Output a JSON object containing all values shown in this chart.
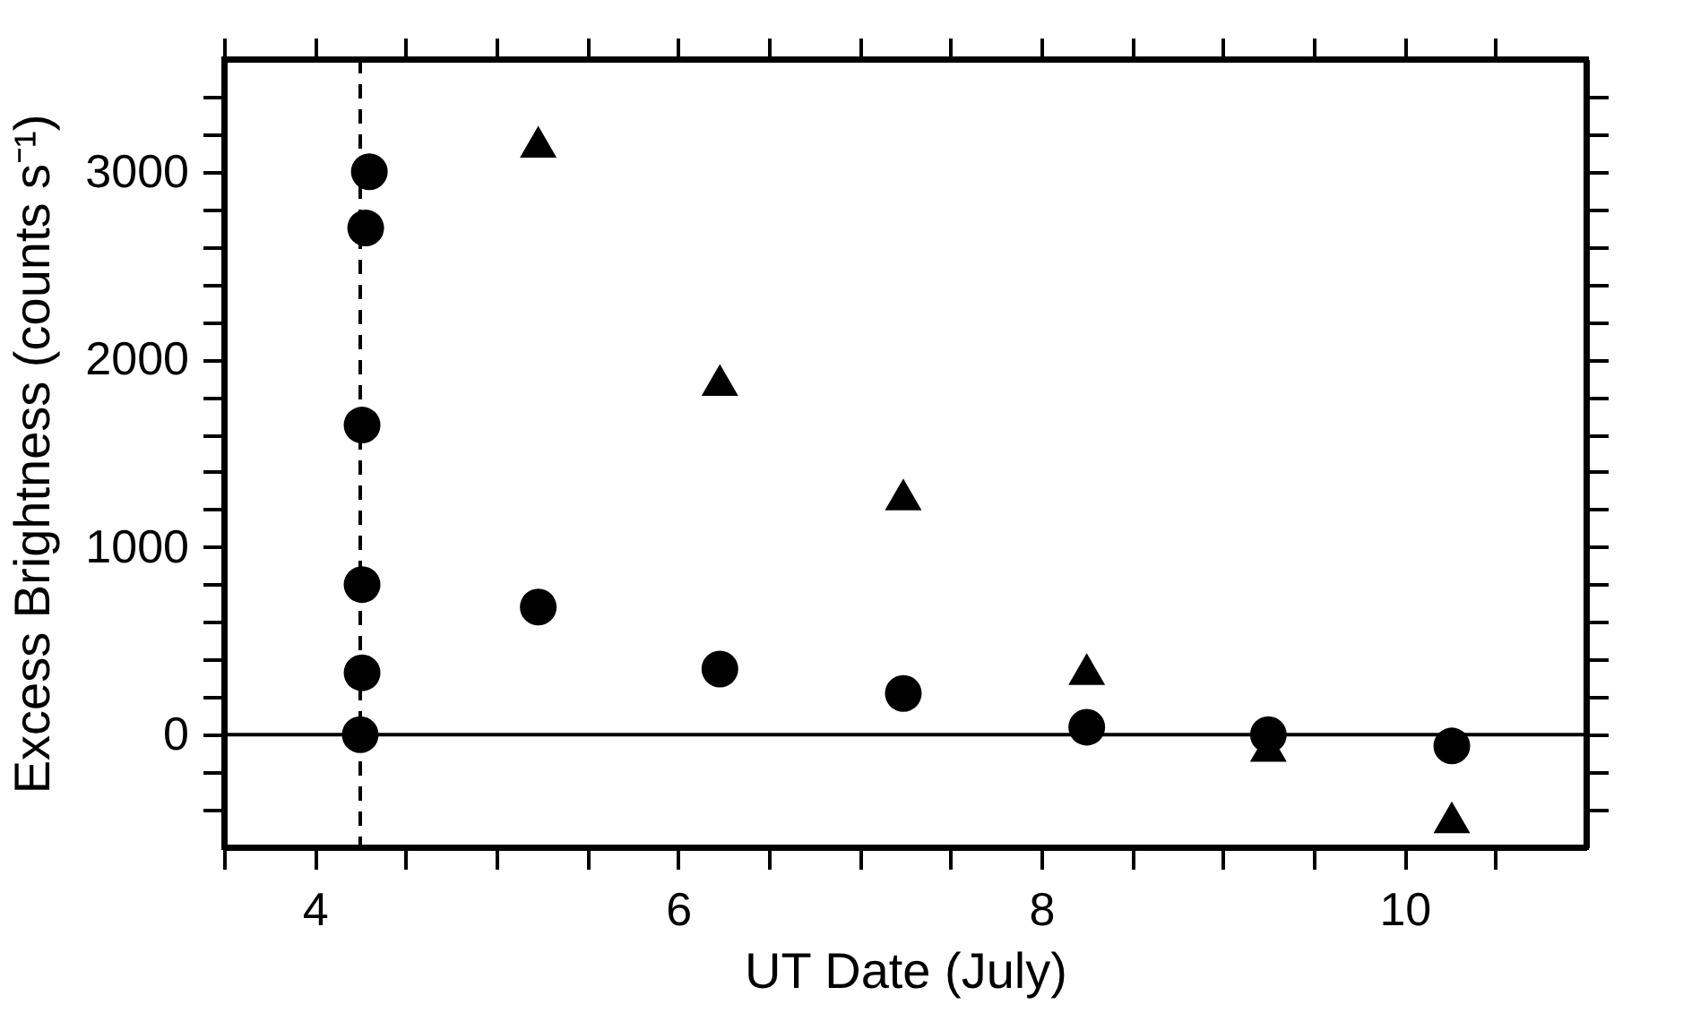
{
  "chart_data": {
    "type": "scatter",
    "xlabel": "UT Date (July)",
    "ylabel": "Excess Brightness (counts s⁻¹)",
    "xlim": [
      3.5,
      11
    ],
    "ylim": [
      -600,
      3600
    ],
    "xticks": [
      {
        "value": 3.5,
        "label": null
      },
      4,
      {
        "value": 4.5,
        "label": null
      },
      {
        "value": 5,
        "label": null
      },
      {
        "value": 5.5,
        "label": null
      },
      6,
      {
        "value": 6.5,
        "label": null
      },
      {
        "value": 7,
        "label": null
      },
      {
        "value": 7.5,
        "label": null
      },
      8,
      {
        "value": 8.5,
        "label": null
      },
      {
        "value": 9,
        "label": null
      },
      {
        "value": 9.5,
        "label": null
      },
      10,
      {
        "value": 10.5,
        "label": null
      }
    ],
    "yticks": [
      {
        "value": -400,
        "label": null
      },
      {
        "value": -200,
        "label": null
      },
      0,
      {
        "value": 200,
        "label": null
      },
      {
        "value": 400,
        "label": null
      },
      {
        "value": 600,
        "label": null
      },
      {
        "value": 800,
        "label": null
      },
      1000,
      {
        "value": 1200,
        "label": null
      },
      {
        "value": 1400,
        "label": null
      },
      {
        "value": 1600,
        "label": null
      },
      {
        "value": 1800,
        "label": null
      },
      2000,
      {
        "value": 2200,
        "label": null
      },
      {
        "value": 2400,
        "label": null
      },
      {
        "value": 2600,
        "label": null
      },
      {
        "value": 2800,
        "label": null
      },
      3000,
      {
        "value": 3200,
        "label": null
      },
      {
        "value": 3400,
        "label": null
      }
    ],
    "grid": false,
    "series": [
      {
        "color": "#000000",
        "marker": "circle",
        "x": [
          4.3,
          4.28,
          4.26,
          4.26,
          4.26,
          4.25,
          5.23,
          6.23,
          7.24,
          8.25,
          9.25,
          10.26
        ],
        "values": [
          3000,
          2700,
          1650,
          800,
          330,
          0,
          680,
          350,
          220,
          40,
          0,
          -60
        ]
      },
      {
        "color": "#000000",
        "marker": "triangle",
        "x": [
          5.23,
          6.23,
          7.24,
          8.25,
          9.25,
          10.26
        ],
        "values": [
          3160,
          1890,
          1280,
          350,
          -60,
          -440
        ]
      }
    ],
    "ref_lines": [
      {
        "axis": "y",
        "value": 0,
        "line_style": "solid",
        "color": "#000000"
      },
      {
        "axis": "x",
        "value": 4.25,
        "line_style": "dashed",
        "color": "#000000"
      }
    ]
  }
}
